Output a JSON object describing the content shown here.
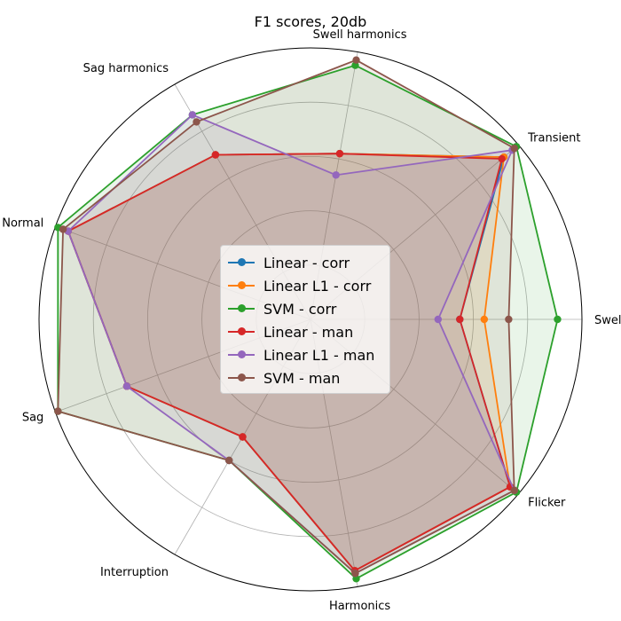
{
  "chart_data": {
    "type": "radar",
    "title": "F1 scores, 20db",
    "axes": [
      "Swell",
      "Transient",
      "Swell harmonics",
      "Sag harmonics",
      "Normal",
      "Sag",
      "Interruption",
      "Harmonics",
      "Flicker"
    ],
    "rlim": [
      0,
      1
    ],
    "grid": true,
    "legend_position": "center",
    "series": [
      {
        "name": "Linear - corr",
        "color": "#1f77b4",
        "values": [
          0.55,
          0.93,
          0.62,
          0.7,
          0.95,
          0.72,
          0.5,
          0.94,
          0.96
        ]
      },
      {
        "name": "Linear L1 - corr",
        "color": "#ff7f0e",
        "values": [
          0.64,
          0.93,
          0.62,
          0.7,
          0.95,
          0.72,
          0.5,
          0.94,
          0.96
        ]
      },
      {
        "name": "SVM - corr",
        "color": "#2ca02c",
        "values": [
          0.91,
          0.99,
          0.95,
          0.87,
          0.99,
          0.99,
          0.6,
          0.97,
          0.99
        ]
      },
      {
        "name": "Linear - man",
        "color": "#d62728",
        "values": [
          0.55,
          0.92,
          0.62,
          0.7,
          0.95,
          0.72,
          0.5,
          0.94,
          0.96
        ]
      },
      {
        "name": "Linear L1 - man",
        "color": "#9467bd",
        "values": [
          0.47,
          0.97,
          0.54,
          0.87,
          0.95,
          0.72,
          0.6,
          0.95,
          0.98
        ]
      },
      {
        "name": "SVM - man",
        "color": "#8c564b",
        "values": [
          0.73,
          0.98,
          0.97,
          0.84,
          0.97,
          0.99,
          0.6,
          0.95,
          0.98
        ]
      }
    ]
  }
}
